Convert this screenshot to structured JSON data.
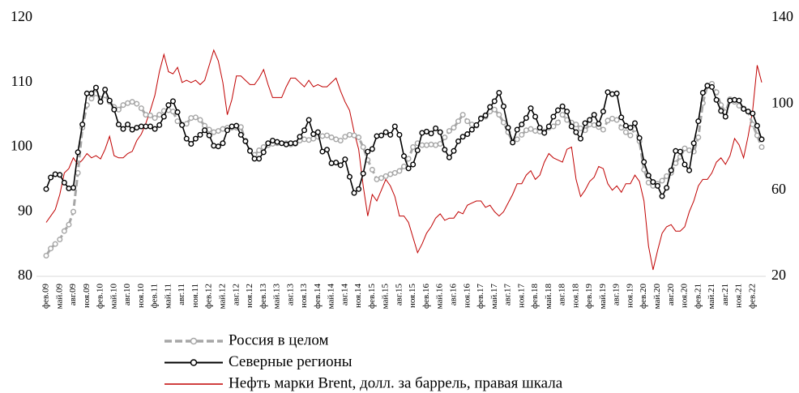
{
  "chart_data": {
    "type": "line",
    "categories": [
      "фев.09",
      null,
      null,
      "май.09",
      null,
      null,
      "авг.09",
      null,
      null,
      "ноя.09",
      null,
      null,
      "фев.10",
      null,
      null,
      "май.10",
      null,
      null,
      "авг.10",
      null,
      null,
      "ноя.10",
      null,
      null,
      "фев.11",
      null,
      null,
      "май.11",
      null,
      null,
      "авг.11",
      null,
      null,
      "ноя.11",
      null,
      null,
      "фев.12",
      null,
      null,
      "май.12",
      null,
      null,
      "авг.12",
      null,
      null,
      "ноя.12",
      null,
      null,
      "фев.13",
      null,
      null,
      "май.13",
      null,
      null,
      "авг.13",
      null,
      null,
      "ноя.13",
      null,
      null,
      "фев.14",
      null,
      null,
      "май.14",
      null,
      null,
      "авг.14",
      null,
      null,
      "ноя.14",
      null,
      null,
      "фев.15",
      null,
      null,
      "май.15",
      null,
      null,
      "авг.15",
      null,
      null,
      "ноя.15",
      null,
      null,
      "фев.16",
      null,
      null,
      "май.16",
      null,
      null,
      "авг.16",
      null,
      null,
      "ноя.16",
      null,
      null,
      "фев.17",
      null,
      null,
      "май.17",
      null,
      null,
      "авг.17",
      null,
      null,
      "ноя.17",
      null,
      null,
      "фев.18",
      null,
      null,
      "май.18",
      null,
      null,
      "авг.18",
      null,
      null,
      "ноя.18",
      null,
      null,
      "фев.19",
      null,
      null,
      "май.19",
      null,
      null,
      "авг.19",
      null,
      null,
      "ноя.19",
      null,
      null,
      "фев.20",
      null,
      null,
      "май.20",
      null,
      null,
      "авг.20",
      null,
      null,
      "ноя.20",
      null,
      null,
      "фев.21",
      null,
      null,
      "май.21",
      null,
      null,
      "авг.21",
      null,
      null,
      "ноя.21",
      null,
      null,
      "фев.22",
      null,
      null
    ],
    "series": [
      {
        "name": "Россия в целом",
        "color": "#a6a6a6",
        "dashed": true,
        "markers": true,
        "width": 3,
        "values": [
          83.2,
          84.3,
          85,
          85.7,
          87,
          88,
          90,
          96,
          103,
          106.5,
          107.5,
          108.3,
          107.5,
          108,
          107,
          106.2,
          105.8,
          106.5,
          106.8,
          107,
          106.7,
          106,
          105,
          104.9,
          104.5,
          105,
          105.6,
          105.7,
          105.5,
          104,
          103.5,
          103.6,
          104.5,
          104.6,
          104.2,
          103.3,
          102.7,
          102.3,
          102.5,
          102.8,
          103,
          103,
          103,
          103.1,
          101,
          99.5,
          98.8,
          99.5,
          100,
          100.3,
          100.5,
          100.6,
          100.6,
          100.6,
          100.4,
          100.5,
          101,
          101.2,
          101.1,
          101.3,
          101.6,
          101.7,
          101.8,
          101.5,
          101.2,
          101,
          101.6,
          101.9,
          101.8,
          101.5,
          100,
          98,
          96.5,
          95,
          95.2,
          95.5,
          95.8,
          96,
          96.3,
          97,
          98.2,
          100,
          100.6,
          100.3,
          100.3,
          100.4,
          100.3,
          100.5,
          101.5,
          102.5,
          103,
          104,
          105,
          104,
          103.5,
          103.3,
          104.5,
          104.7,
          105.5,
          105.8,
          105,
          103.8,
          102.3,
          100.8,
          101.2,
          101.9,
          102.6,
          102.8,
          102.5,
          102.4,
          102.4,
          103,
          103.2,
          103.8,
          105,
          104.2,
          103.8,
          103.5,
          102.9,
          102.6,
          103.5,
          103.4,
          103.1,
          102.7,
          104.1,
          104.4,
          104.2,
          103,
          102.3,
          101.8,
          102.8,
          100.9,
          96.5,
          94.5,
          94,
          94.3,
          94.8,
          95.5,
          96,
          97.5,
          98.5,
          99.8,
          99.5,
          99.3,
          101.5,
          106.8,
          109.5,
          109.8,
          108.5,
          106.5,
          105.4,
          107.4,
          107,
          106.4,
          106,
          105.5,
          103.5,
          101.8,
          100
        ]
      },
      {
        "name": "Северные регионы",
        "color": "#000000",
        "dashed": false,
        "markers": true,
        "width": 1.6,
        "values": [
          93.5,
          95.3,
          95.8,
          95.7,
          94.5,
          93.6,
          93.7,
          99.2,
          103.5,
          108.3,
          108.3,
          109.2,
          107,
          108.9,
          107.2,
          105.8,
          103.5,
          102.8,
          103.5,
          102.7,
          103,
          103.2,
          103.2,
          103.2,
          102.8,
          103.4,
          104.7,
          106.5,
          107.1,
          105.4,
          103.4,
          101.3,
          100.5,
          101.3,
          101.9,
          102.6,
          101.8,
          100.2,
          100.1,
          100.6,
          102.6,
          103.2,
          103.3,
          101.9,
          100.9,
          99.4,
          98.2,
          98.2,
          99.2,
          100.6,
          101,
          100.8,
          100.6,
          100.4,
          100.6,
          100.6,
          101.6,
          102.6,
          104.2,
          102,
          102.3,
          99.3,
          99.6,
          97.5,
          97.6,
          97.2,
          98.1,
          95.4,
          92.9,
          93.5,
          95.9,
          99.3,
          99.7,
          101.7,
          101.8,
          102.3,
          101.9,
          103.2,
          101.9,
          98.6,
          96.7,
          97.3,
          99.5,
          102.2,
          102.4,
          102.1,
          102.9,
          102.3,
          99.6,
          98.4,
          99.4,
          100.9,
          101.6,
          102,
          102.7,
          103.4,
          104.4,
          104.9,
          106.2,
          107.1,
          108.4,
          106.3,
          103,
          100.7,
          102.7,
          103.5,
          104.5,
          106,
          104.7,
          103,
          102.2,
          103.2,
          104.7,
          105.7,
          106.3,
          105.5,
          103.2,
          102.3,
          101.3,
          103.7,
          104.2,
          105,
          103.6,
          105.5,
          108.5,
          108.2,
          108.3,
          104.6,
          103.3,
          103,
          103.7,
          101.4,
          97.7,
          95.6,
          94.6,
          94,
          92.4,
          93.7,
          96.4,
          99.4,
          99.3,
          97.3,
          96.4,
          100.6,
          104,
          108.4,
          109.5,
          109.3,
          107.3,
          105.6,
          104.7,
          107.2,
          107.3,
          107.2,
          105.9,
          105.5,
          105.2,
          103.3,
          101.2
        ]
      },
      {
        "name": "Нефть марки Brent, долл. за баррель, правая шкала",
        "color": "#c00000",
        "dashed": false,
        "markers": false,
        "width": 1,
        "axis": "y2",
        "values": [
          45,
          48,
          51,
          58,
          68,
          70,
          75,
          72,
          74,
          77,
          75,
          76,
          74.5,
          79,
          85,
          76,
          75,
          75,
          77,
          78,
          83,
          86,
          91,
          97,
          104,
          115,
          123,
          115,
          114,
          117,
          110,
          111,
          110,
          111,
          109,
          111,
          118,
          125,
          120,
          110,
          95,
          102,
          113,
          113,
          111,
          109,
          109,
          112,
          116,
          109,
          103,
          103,
          103,
          108,
          112,
          112,
          110,
          108,
          111,
          108,
          109,
          108,
          108,
          110,
          112,
          106,
          101,
          97,
          87,
          79,
          62,
          48,
          58,
          55,
          60,
          65,
          62,
          57,
          48,
          48,
          45,
          38,
          31,
          35,
          40,
          43,
          47,
          49,
          46,
          47,
          47,
          50,
          49,
          53,
          54,
          55,
          55,
          52,
          53,
          50,
          48,
          50,
          54,
          58,
          63,
          63,
          67,
          69,
          65,
          67,
          73,
          77,
          75,
          74,
          73,
          79,
          80,
          65,
          57,
          60,
          64,
          66,
          71,
          70,
          63,
          60,
          62,
          59,
          63,
          63,
          67,
          64,
          55,
          34,
          23,
          32,
          40,
          43,
          44,
          41,
          41,
          43,
          50,
          55,
          62,
          65,
          65,
          68,
          73,
          75,
          72,
          76,
          84,
          81,
          75,
          85,
          97,
          118,
          110
        ]
      }
    ],
    "ylim": [
      80,
      120
    ],
    "yticks": [
      80,
      90,
      100,
      110,
      120
    ],
    "y2lim": [
      20,
      140
    ],
    "y2ticks": [
      20,
      60,
      100,
      140
    ]
  }
}
